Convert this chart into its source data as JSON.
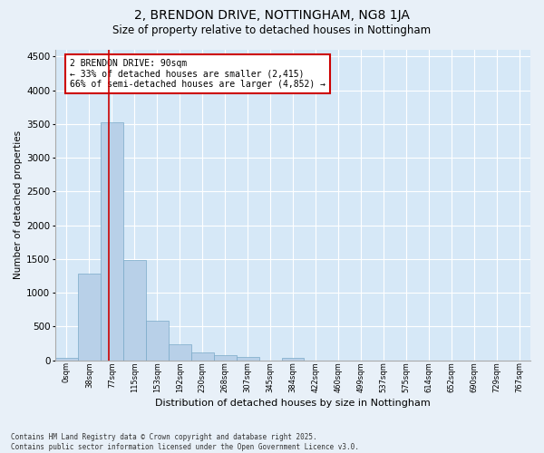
{
  "title": "2, BRENDON DRIVE, NOTTINGHAM, NG8 1JA",
  "subtitle": "Size of property relative to detached houses in Nottingham",
  "xlabel": "Distribution of detached houses by size in Nottingham",
  "ylabel": "Number of detached properties",
  "bar_color": "#b8d0e8",
  "bar_edge_color": "#7aaac8",
  "background_color": "#d6e8f7",
  "fig_background_color": "#e8f0f8",
  "grid_color": "#ffffff",
  "bin_labels": [
    "0sqm",
    "38sqm",
    "77sqm",
    "115sqm",
    "153sqm",
    "192sqm",
    "230sqm",
    "268sqm",
    "307sqm",
    "345sqm",
    "384sqm",
    "422sqm",
    "460sqm",
    "499sqm",
    "537sqm",
    "575sqm",
    "614sqm",
    "652sqm",
    "690sqm",
    "729sqm",
    "767sqm"
  ],
  "bar_heights": [
    30,
    1280,
    3530,
    1490,
    590,
    240,
    115,
    80,
    50,
    0,
    40,
    0,
    0,
    0,
    0,
    0,
    0,
    0,
    0,
    0,
    0
  ],
  "ylim": [
    0,
    4600
  ],
  "yticks": [
    0,
    500,
    1000,
    1500,
    2000,
    2500,
    3000,
    3500,
    4000,
    4500
  ],
  "property_line_x": 2.37,
  "annotation_title": "2 BRENDON DRIVE: 90sqm",
  "annotation_line1": "← 33% of detached houses are smaller (2,415)",
  "annotation_line2": "66% of semi-detached houses are larger (4,852) →",
  "annotation_box_color": "#ffffff",
  "annotation_edge_color": "#cc0000",
  "vline_color": "#cc0000",
  "footer1": "Contains HM Land Registry data © Crown copyright and database right 2025.",
  "footer2": "Contains public sector information licensed under the Open Government Licence v3.0."
}
